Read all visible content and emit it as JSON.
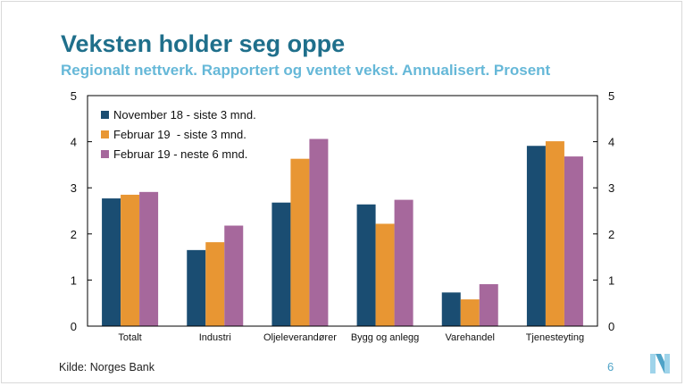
{
  "slide": {
    "title": "Veksten holder seg oppe",
    "subtitle": "Regionalt nettverk. Rapportert og ventet vekst. Annualisert. Prosent",
    "source": "Kilde: Norges Bank",
    "page_number": "6"
  },
  "colors": {
    "title": "#1f6f8b",
    "subtitle": "#66b8d8",
    "accent": "#4fa3c7"
  },
  "chart_data": {
    "type": "bar",
    "categories": [
      "Totalt",
      "Industri",
      "Oljeleverandører",
      "Bygg og anlegg",
      "Varehandel",
      "Tjenesteyting"
    ],
    "series": [
      {
        "name": "November 18 - siste 3 mnd.",
        "color": "#1a4d72",
        "values": [
          2.77,
          1.65,
          2.68,
          2.64,
          0.73,
          3.91
        ]
      },
      {
        "name": "Februar 19  - siste 3 mnd.",
        "color": "#e89633",
        "values": [
          2.85,
          1.82,
          3.63,
          2.22,
          0.58,
          4.01
        ]
      },
      {
        "name": "Februar 19 - neste 6 mnd.",
        "color": "#a6689c",
        "values": [
          2.91,
          2.18,
          4.06,
          2.74,
          0.91,
          3.68
        ]
      }
    ],
    "ylim": [
      0,
      5
    ],
    "yticks": [
      "0",
      "1",
      "2",
      "3",
      "4",
      "5"
    ],
    "secondary_axis": true,
    "grid": false,
    "legend_position": "top-left"
  }
}
